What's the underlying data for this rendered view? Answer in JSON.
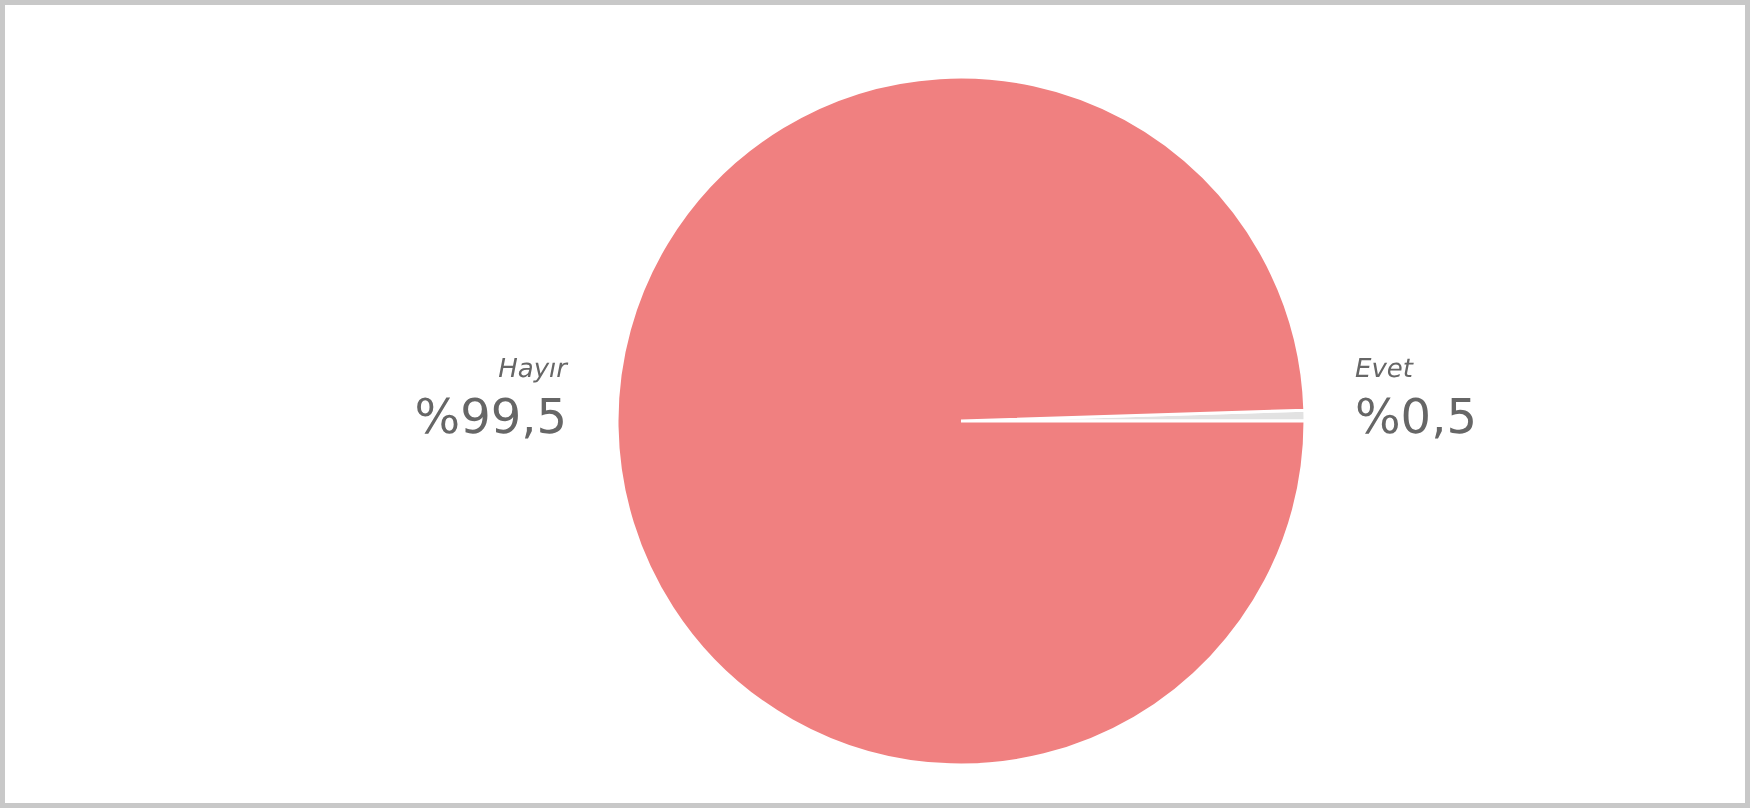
{
  "chart_data": {
    "type": "pie",
    "categories": [
      "Hayır",
      "Evet"
    ],
    "values": [
      99.5,
      0.5
    ],
    "colors": [
      "#f08080",
      "#e2e2e2"
    ],
    "value_labels": [
      "%99,5",
      "%0,5"
    ]
  }
}
